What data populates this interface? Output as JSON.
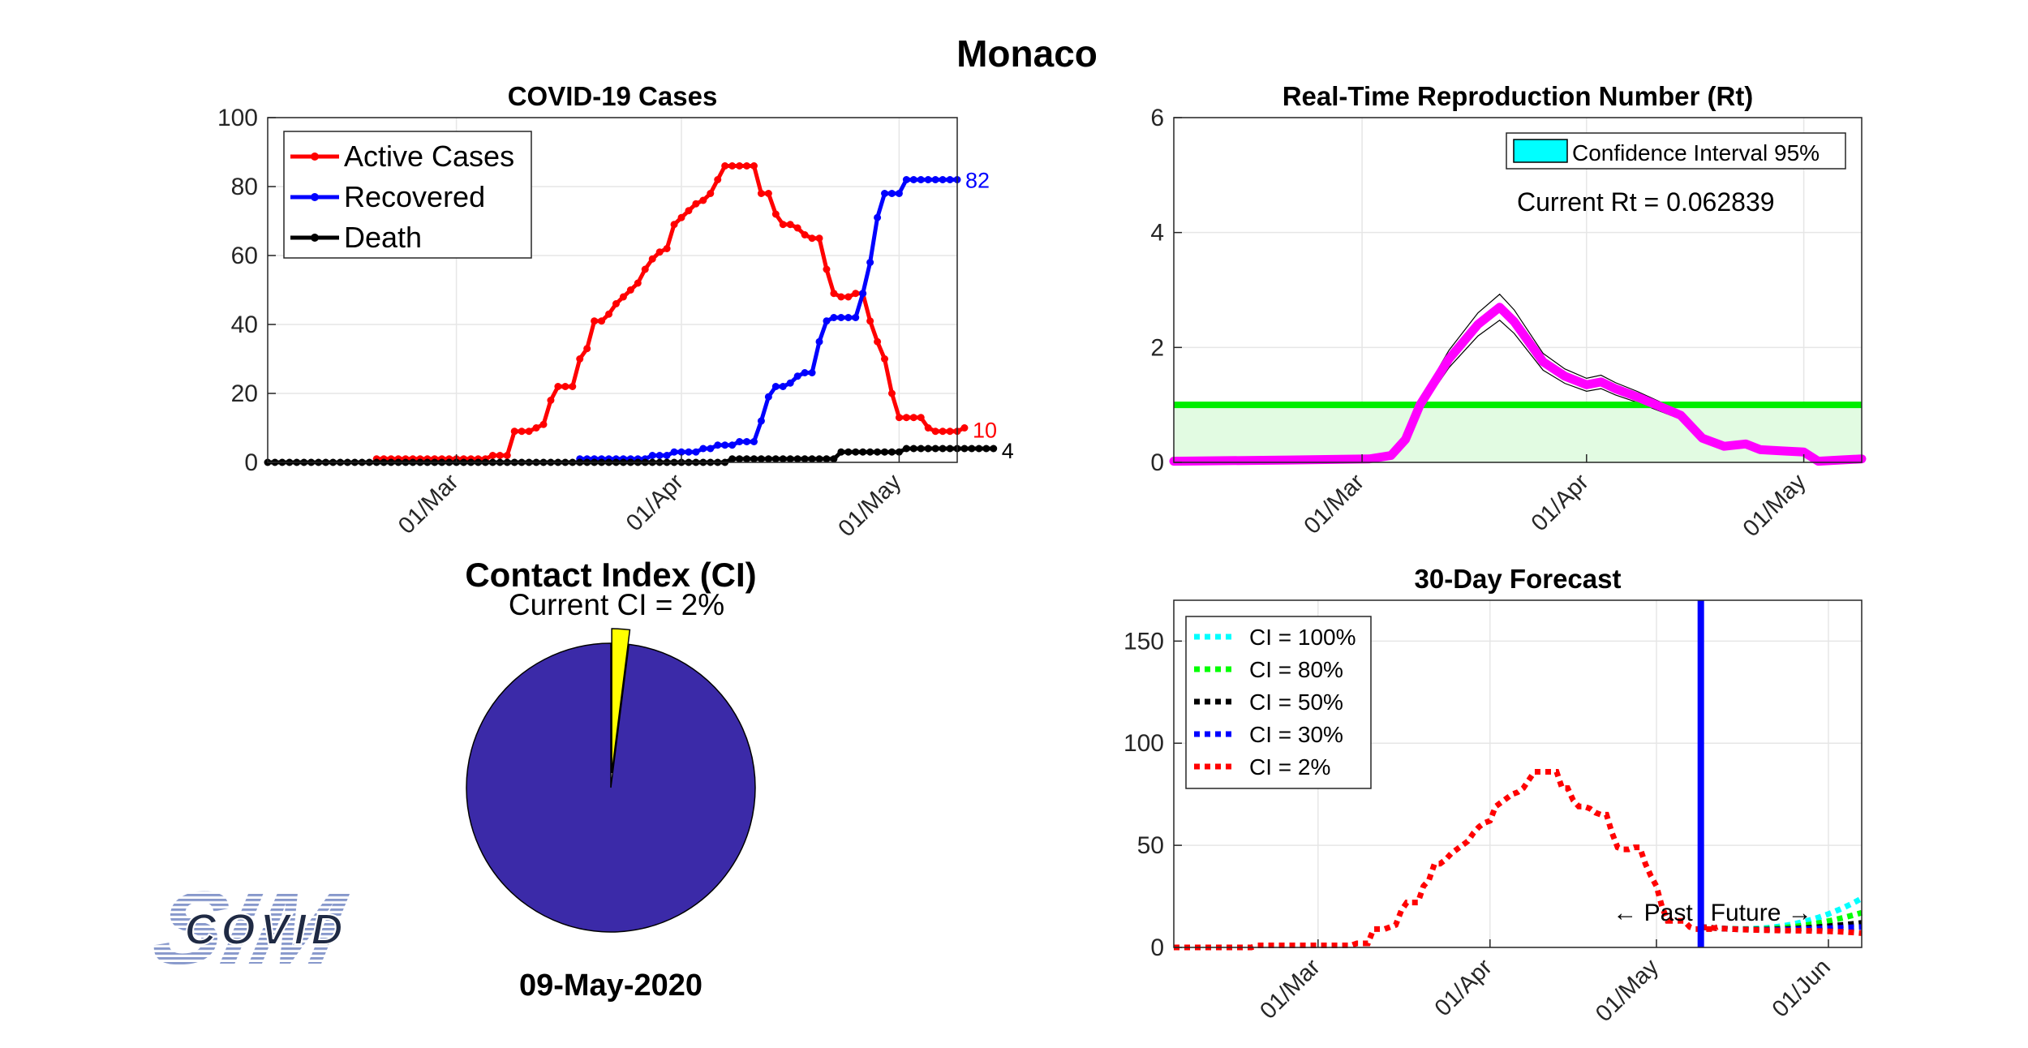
{
  "country": "Monaco",
  "date_label": "09-May-2020",
  "logo": {
    "text": "COVID",
    "bg_text": "SIM"
  },
  "colors": {
    "active": "#ff0000",
    "recovered": "#0000ff",
    "death": "#000000",
    "rt": "#ff00ff",
    "threshold": "#00ee00",
    "ci_fill": "#00ffff",
    "pie_main": "#3b2aa8",
    "pie_slice": "#ffff00",
    "ci100": "#00ffff",
    "ci80": "#00ff00",
    "ci50": "#000000",
    "ci30": "#0000ff",
    "ci2": "#ff0000",
    "divider": "#0000ff"
  },
  "chart_data": [
    {
      "type": "line",
      "title": "COVID-19 Cases",
      "ylim": [
        0,
        100
      ],
      "yticks": [
        0,
        20,
        40,
        60,
        80,
        100
      ],
      "xlim": [
        "2020-02-04",
        "2020-05-09"
      ],
      "xticks": [
        {
          "date": "2020-03-01",
          "label": "01/Mar"
        },
        {
          "date": "2020-04-01",
          "label": "01/Apr"
        },
        {
          "date": "2020-05-01",
          "label": "01/May"
        }
      ],
      "grid": true,
      "legend": "top-left",
      "series": [
        {
          "name": "Active Cases",
          "color_key": "active",
          "start": "2020-02-19",
          "values": [
            1,
            1,
            1,
            1,
            1,
            1,
            1,
            1,
            1,
            1,
            1,
            1,
            1,
            1,
            1,
            1,
            2,
            2,
            2,
            9,
            9,
            9,
            10,
            11,
            18,
            22,
            22,
            22,
            30,
            33,
            41,
            41,
            43,
            46,
            48,
            50,
            52,
            56,
            59,
            61,
            62,
            69,
            71,
            73,
            75,
            76,
            78,
            82,
            86,
            86,
            86,
            86,
            86,
            78,
            78,
            72,
            69,
            69,
            68,
            66,
            65,
            65,
            56,
            49,
            48,
            48,
            49,
            49,
            41,
            35,
            30,
            20,
            13,
            13,
            13,
            13,
            10,
            9,
            9,
            9,
            9,
            10
          ]
        },
        {
          "name": "Recovered",
          "color_key": "recovered",
          "start": "2020-03-18",
          "values": [
            1,
            1,
            1,
            1,
            1,
            1,
            1,
            1,
            1,
            1,
            2,
            2,
            2,
            3,
            3,
            3,
            3,
            4,
            4,
            5,
            5,
            5,
            6,
            6,
            6,
            12,
            19,
            22,
            22,
            23,
            25,
            26,
            26,
            35,
            41,
            42,
            42,
            42,
            42,
            49,
            58,
            71,
            78,
            78,
            78,
            82,
            82,
            82,
            82,
            82,
            82,
            82,
            82
          ]
        },
        {
          "name": "Death",
          "color_key": "death",
          "start": "2020-02-04",
          "values": [
            0,
            0,
            0,
            0,
            0,
            0,
            0,
            0,
            0,
            0,
            0,
            0,
            0,
            0,
            0,
            0,
            0,
            0,
            0,
            0,
            0,
            0,
            0,
            0,
            0,
            0,
            0,
            0,
            0,
            0,
            0,
            0,
            0,
            0,
            0,
            0,
            0,
            0,
            0,
            0,
            0,
            0,
            0,
            0,
            0,
            0,
            0,
            0,
            0,
            0,
            0,
            0,
            0,
            0,
            0,
            0,
            0,
            0,
            0,
            0,
            0,
            0,
            0,
            0,
            1,
            1,
            1,
            1,
            1,
            1,
            1,
            1,
            1,
            1,
            1,
            1,
            1,
            1,
            1,
            3,
            3,
            3,
            3,
            3,
            3,
            3,
            3,
            3,
            4,
            4,
            4,
            4,
            4,
            4,
            4,
            4,
            4,
            4,
            4,
            4,
            4
          ]
        }
      ],
      "end_labels": [
        {
          "series": "Recovered",
          "text": "82"
        },
        {
          "series": "Active Cases",
          "text": "10"
        },
        {
          "series": "Death",
          "text": "4"
        }
      ]
    },
    {
      "type": "line",
      "title": "Real-Time Reproduction Number (Rt)",
      "ylim": [
        0,
        6
      ],
      "yticks": [
        0,
        2,
        4,
        6
      ],
      "xlim": [
        "2020-02-04",
        "2020-05-09"
      ],
      "xticks": [
        {
          "date": "2020-03-01",
          "label": "01/Mar"
        },
        {
          "date": "2020-04-01",
          "label": "01/Apr"
        },
        {
          "date": "2020-05-01",
          "label": "01/May"
        }
      ],
      "grid": true,
      "threshold": 1,
      "legend": "top-right",
      "legend_entry": "Confidence Interval 95%",
      "annotation": "Current Rt = 0.062839",
      "series": [
        {
          "name": "Rt",
          "color_key": "rt",
          "points": [
            [
              "2020-02-04",
              0.02
            ],
            [
              "2020-02-20",
              0.04
            ],
            [
              "2020-03-02",
              0.06
            ],
            [
              "2020-03-05",
              0.12
            ],
            [
              "2020-03-07",
              0.4
            ],
            [
              "2020-03-09",
              1.0
            ],
            [
              "2020-03-13",
              1.8
            ],
            [
              "2020-03-17",
              2.4
            ],
            [
              "2020-03-20",
              2.7
            ],
            [
              "2020-03-22",
              2.45
            ],
            [
              "2020-03-24",
              2.1
            ],
            [
              "2020-03-26",
              1.75
            ],
            [
              "2020-03-29",
              1.5
            ],
            [
              "2020-04-01",
              1.35
            ],
            [
              "2020-04-03",
              1.4
            ],
            [
              "2020-04-05",
              1.28
            ],
            [
              "2020-04-08",
              1.14
            ],
            [
              "2020-04-11",
              0.98
            ],
            [
              "2020-04-14",
              0.82
            ],
            [
              "2020-04-17",
              0.42
            ],
            [
              "2020-04-20",
              0.28
            ],
            [
              "2020-04-23",
              0.32
            ],
            [
              "2020-04-25",
              0.22
            ],
            [
              "2020-04-28",
              0.2
            ],
            [
              "2020-05-01",
              0.18
            ],
            [
              "2020-05-03",
              0.02
            ],
            [
              "2020-05-06",
              0.04
            ],
            [
              "2020-05-09",
              0.06
            ]
          ]
        }
      ]
    },
    {
      "type": "pie",
      "title": "Contact Index (CI)",
      "subtitle": "Current CI = 2%",
      "slices": [
        {
          "label": "CI",
          "value": 2,
          "color_key": "pie_slice"
        },
        {
          "label": "",
          "value": 98,
          "color_key": "pie_main"
        }
      ]
    },
    {
      "type": "line",
      "title": "30-Day Forecast",
      "ylim": [
        0,
        170
      ],
      "yticks": [
        0,
        50,
        100,
        150
      ],
      "xlim": [
        "2020-02-04",
        "2020-06-07"
      ],
      "xticks": [
        {
          "date": "2020-03-01",
          "label": "01/Mar"
        },
        {
          "date": "2020-04-01",
          "label": "01/Apr"
        },
        {
          "date": "2020-05-01",
          "label": "01/May"
        },
        {
          "date": "2020-06-01",
          "label": "01/Jun"
        }
      ],
      "grid": true,
      "legend": "top-left",
      "divider_date": "2020-05-09",
      "past_label": "← Past",
      "future_label": "Future →",
      "history_start": "2020-02-04",
      "history": [
        0,
        0,
        0,
        0,
        0,
        0,
        0,
        0,
        0,
        0,
        0,
        0,
        0,
        0,
        0,
        1,
        1,
        1,
        1,
        1,
        1,
        1,
        1,
        1,
        1,
        1,
        1,
        1,
        1,
        1,
        1,
        1,
        1,
        2,
        2,
        2,
        9,
        9,
        9,
        10,
        11,
        18,
        22,
        22,
        22,
        30,
        33,
        41,
        41,
        43,
        46,
        48,
        50,
        52,
        56,
        59,
        61,
        62,
        69,
        71,
        73,
        75,
        76,
        78,
        82,
        86,
        86,
        86,
        86,
        86,
        78,
        78,
        72,
        69,
        69,
        68,
        66,
        65,
        65,
        56,
        49,
        48,
        48,
        49,
        49,
        41,
        35,
        30,
        20,
        13,
        13,
        13,
        13,
        10,
        9,
        9,
        9,
        9,
        10
      ],
      "series": [
        {
          "name": "CI = 100%",
          "color_key": "ci100",
          "end": 21
        },
        {
          "name": "CI = 80%",
          "color_key": "ci80",
          "end": 14
        },
        {
          "name": "CI = 50%",
          "color_key": "ci50",
          "end": 9
        },
        {
          "name": "CI = 30%",
          "color_key": "ci30",
          "end": 7
        },
        {
          "name": "CI = 2%",
          "color_key": "ci2",
          "end": 4
        }
      ]
    }
  ]
}
